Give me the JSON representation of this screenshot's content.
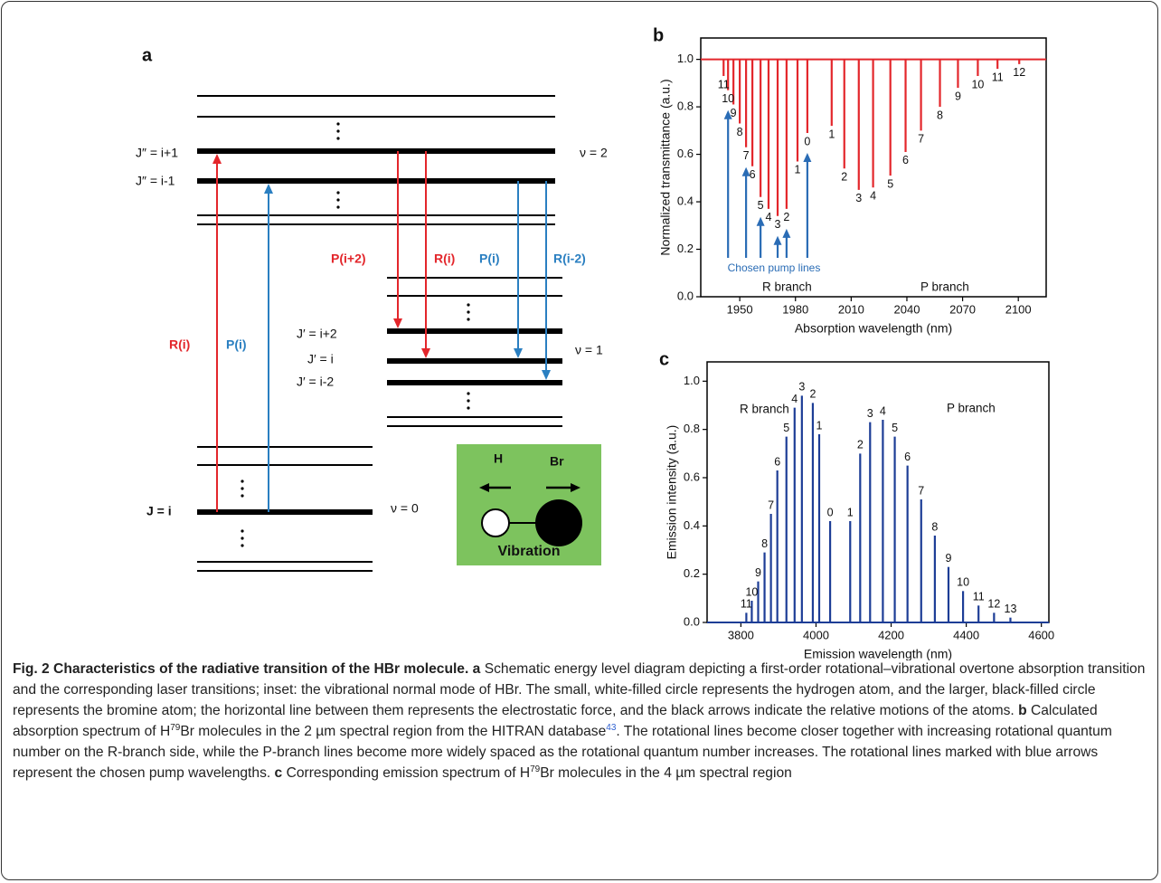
{
  "diagram": {
    "panel": "a",
    "v2": "ν = 2",
    "v1": "ν = 1",
    "v0": "ν = 0",
    "levels": [
      "J″ = i+1",
      "J″ = i-1",
      "J′ = i+2",
      "J′ = i",
      "J′ = i-2",
      "J = i"
    ],
    "transitions": [
      "P(i+2)",
      "R(i)",
      "P(i)",
      "R(i-2)"
    ],
    "pump_transitions": [
      "R(i)",
      "P(i)"
    ],
    "inset": {
      "h": "H",
      "br": "Br",
      "label": "Vibration"
    }
  },
  "chart_data": [
    {
      "type": "stem",
      "panel": "b",
      "xlabel": "Absorption  wavelength (nm)",
      "ylabel": "Normalized transmittance (a.u.)",
      "xlim": [
        1929,
        2115
      ],
      "ylim": [
        0,
        1.09
      ],
      "xticks": [
        1950,
        1980,
        2010,
        2040,
        2070,
        2100
      ],
      "yticks": [
        {
          "value": 0,
          "label": "0.0"
        },
        {
          "value": 0.2,
          "label": "0.2"
        },
        {
          "value": 0.4,
          "label": "0.4"
        },
        {
          "value": 0.6,
          "label": "0.6"
        },
        {
          "value": 0.8,
          "label": "0.8"
        },
        {
          "value": 1,
          "label": "1.0"
        }
      ],
      "baseline": 1,
      "series": [
        {
          "name": "R branch",
          "color": "#e3262b",
          "x": [
            1986.4,
            1981.1,
            1975.2,
            1970.4,
            1965.5,
            1961.2,
            1956.8,
            1953.4,
            1950,
            1946.6,
            1943.7,
            1941.3
          ],
          "values": [
            0.69,
            0.57,
            0.37,
            0.34,
            0.37,
            0.42,
            0.55,
            0.63,
            0.73,
            0.81,
            0.87,
            0.93
          ],
          "labels": [
            "0",
            "1",
            "2",
            "3",
            "4",
            "5",
            "6",
            "7",
            "8",
            "9",
            "10",
            "11"
          ]
        },
        {
          "name": "P branch",
          "color": "#e3262b",
          "x": [
            1999.5,
            2006.3,
            2014.1,
            2021.8,
            2031.1,
            2039.3,
            2047.6,
            2057.8,
            2067.5,
            2078.2,
            2088.8,
            2100.5
          ],
          "values": [
            0.72,
            0.54,
            0.45,
            0.46,
            0.51,
            0.61,
            0.7,
            0.8,
            0.88,
            0.93,
            0.96,
            0.98
          ],
          "labels": [
            "1",
            "2",
            "3",
            "4",
            "5",
            "6",
            "7",
            "8",
            "9",
            "10",
            "11",
            "12"
          ]
        }
      ],
      "pump_lines": {
        "text": "Chosen pump lines",
        "color": "#2a6cb5",
        "lines": [
          0,
          2,
          3,
          5,
          7,
          10
        ]
      }
    },
    {
      "type": "stem",
      "panel": "c",
      "xlabel": "Emission wavelength (nm)",
      "ylabel": "Emission intensity (a.u.)",
      "xlim": [
        3710,
        4620
      ],
      "ylim": [
        0,
        1.08
      ],
      "xticks": [
        3800,
        4000,
        4200,
        4400,
        4600
      ],
      "yticks": [
        {
          "value": 0,
          "label": "0.0"
        },
        {
          "value": 0.2,
          "label": "0.2"
        },
        {
          "value": 0.4,
          "label": "0.4"
        },
        {
          "value": 0.6,
          "label": "0.6"
        },
        {
          "value": 0.8,
          "label": "0.8"
        },
        {
          "value": 1,
          "label": "1.0"
        }
      ],
      "baseline": 0,
      "series": [
        {
          "name": "R branch",
          "color": "#1d3d96",
          "x": [
            4037.6,
            4008.5,
            3991.5,
            3962.4,
            3943,
            3921.2,
            3897,
            3880,
            3863,
            3846,
            3829,
            3814.5
          ],
          "values": [
            0.42,
            0.78,
            0.91,
            0.94,
            0.89,
            0.77,
            0.63,
            0.45,
            0.29,
            0.17,
            0.09,
            0.04
          ],
          "labels": [
            "0",
            "1",
            "2",
            "3",
            "4",
            "5",
            "6",
            "7",
            "8",
            "9",
            "10",
            "11"
          ]
        },
        {
          "name": "P branch",
          "color": "#1d3d96",
          "x": [
            4091,
            4117.6,
            4144,
            4178,
            4209.7,
            4243.6,
            4280,
            4316.4,
            4352.7,
            4391.5,
            4432.7,
            4474,
            4517.6
          ],
          "values": [
            0.42,
            0.7,
            0.83,
            0.84,
            0.77,
            0.65,
            0.51,
            0.36,
            0.23,
            0.13,
            0.07,
            0.04,
            0.02
          ],
          "labels": [
            "1",
            "2",
            "3",
            "4",
            "5",
            "6",
            "7",
            "8",
            "9",
            "10",
            "11",
            "12",
            "13"
          ]
        }
      ]
    }
  ],
  "caption": {
    "segments": [
      "Fig. 2 Characteristics of the radiative transition of the HBr molecule.",
      "a",
      "Schematic energy level diagram depicting a first-order rotational–vibrational overtone absorption transition and the corresponding laser transitions; inset: the vibrational normal mode of HBr. The small, white-filled circle represents the hydrogen atom, and the larger, black-filled circle represents the bromine atom; the horizontal line between them represents the electrostatic force, and the black arrows indicate the relative motions of the atoms.",
      "b",
      "Calculated absorption spectrum of H",
      "79",
      "Br molecules in the 2 µm spectral region from the HITRAN database",
      "43",
      ". The rotational lines become closer together with increasing rotational quantum number on the R-branch side, while the P-branch lines become more widely spaced as the rotational quantum number increases. The rotational lines marked with blue arrows represent the chosen pump wavelengths.",
      "c",
      "Corresponding emission spectrum of H",
      "79",
      "Br molecules in the 4 µm spectral region"
    ]
  }
}
